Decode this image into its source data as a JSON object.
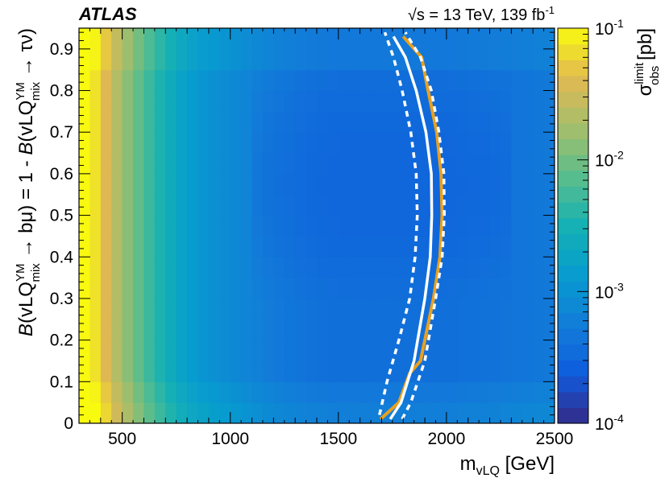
{
  "chart_data": {
    "type": "heatmap",
    "title": "ATLAS",
    "energy_label": "√s = 13 TeV, 139 fb",
    "energy_label_exponent": "-1",
    "xlabel": {
      "main": "m",
      "sub": "vLQ",
      "unit": " [GeV]"
    },
    "ylabel": {
      "part1_italic": "B",
      "part1": "(vLQ",
      "part1_sup": "YM",
      "part1_sub": "mix",
      "part1_tail": " → bμ) = 1 - ",
      "part2_italic": "B",
      "part2": "(vLQ",
      "part2_sup": "YM",
      "part2_sub": "mix",
      "part2_tail": " → τν)"
    },
    "zlabel": {
      "main": "σ",
      "sup": "limit",
      "sub": "obs",
      "unit": " [pb]"
    },
    "xlim": [
      300,
      2500
    ],
    "ylim": [
      0,
      0.95
    ],
    "zlim": [
      0.0001,
      0.1
    ],
    "zscale": "log",
    "xticks": [
      500,
      1000,
      1500,
      2000,
      2500
    ],
    "yticks": [
      0,
      0.1,
      0.2,
      0.3,
      0.4,
      0.5,
      0.6,
      0.7,
      0.8,
      0.9
    ],
    "zticks": [
      {
        "base": "10",
        "exp": "-4"
      },
      {
        "base": "10",
        "exp": "-3"
      },
      {
        "base": "10",
        "exp": "-2"
      },
      {
        "base": "10",
        "exp": "-1"
      }
    ],
    "x_bins": [
      300,
      350,
      400,
      450,
      500,
      550,
      600,
      650,
      700,
      750,
      800,
      850,
      900,
      950,
      1000,
      1050,
      1100,
      1150,
      1200,
      1250,
      1300,
      1350,
      1400,
      1450,
      1500,
      1550,
      1600,
      1650,
      1700,
      1750,
      1800,
      1850,
      1900,
      1950,
      2000,
      2050,
      2100,
      2150,
      2200,
      2250,
      2300,
      2350,
      2400,
      2450,
      2500
    ],
    "y_bins": [
      0,
      0.05,
      0.1,
      0.15,
      0.2,
      0.25,
      0.3,
      0.35,
      0.4,
      0.45,
      0.5,
      0.55,
      0.6,
      0.65,
      0.7,
      0.75,
      0.8,
      0.85,
      0.9,
      0.95
    ],
    "limit_profile": [
      {
        "x": 300,
        "log10_sigma": -1.0
      },
      {
        "x": 350,
        "log10_sigma": -1.05
      },
      {
        "x": 400,
        "log10_sigma": -1.25
      },
      {
        "x": 450,
        "log10_sigma": -1.55
      },
      {
        "x": 500,
        "log10_sigma": -1.8
      },
      {
        "x": 550,
        "log10_sigma": -2.0
      },
      {
        "x": 600,
        "log10_sigma": -2.2
      },
      {
        "x": 650,
        "log10_sigma": -2.4
      },
      {
        "x": 700,
        "log10_sigma": -2.55
      },
      {
        "x": 750,
        "log10_sigma": -2.7
      },
      {
        "x": 800,
        "log10_sigma": -2.85
      },
      {
        "x": 900,
        "log10_sigma": -3.0
      },
      {
        "x": 1000,
        "log10_sigma": -3.1
      },
      {
        "x": 1100,
        "log10_sigma": -3.2
      },
      {
        "x": 1200,
        "log10_sigma": -3.3
      },
      {
        "x": 1300,
        "log10_sigma": -3.35
      },
      {
        "x": 1400,
        "log10_sigma": -3.4
      },
      {
        "x": 1500,
        "log10_sigma": -3.42
      },
      {
        "x": 1600,
        "log10_sigma": -3.42
      },
      {
        "x": 1700,
        "log10_sigma": -3.42
      },
      {
        "x": 1800,
        "log10_sigma": -3.42
      },
      {
        "x": 1900,
        "log10_sigma": -3.42
      },
      {
        "x": 2000,
        "log10_sigma": -3.42
      },
      {
        "x": 2100,
        "log10_sigma": -3.4
      },
      {
        "x": 2200,
        "log10_sigma": -3.38
      },
      {
        "x": 2300,
        "log10_sigma": -3.35
      },
      {
        "x": 2400,
        "log10_sigma": -3.33
      },
      {
        "x": 2500,
        "log10_sigma": -3.3
      }
    ],
    "lines": [
      {
        "style": "orange-solid",
        "color": "#e8a020",
        "points": [
          [
            1695,
            0.01
          ],
          [
            1780,
            0.05
          ],
          [
            1830,
            0.12
          ],
          [
            1880,
            0.15
          ],
          [
            1940,
            0.3
          ],
          [
            1970,
            0.4
          ],
          [
            1980,
            0.5
          ],
          [
            1975,
            0.6
          ],
          [
            1955,
            0.7
          ],
          [
            1915,
            0.8
          ],
          [
            1885,
            0.88
          ],
          [
            1800,
            0.93
          ]
        ]
      },
      {
        "style": "white-solid",
        "color": "#ffffff",
        "points": [
          [
            1740,
            0.01
          ],
          [
            1790,
            0.05
          ],
          [
            1850,
            0.15
          ],
          [
            1900,
            0.3
          ],
          [
            1925,
            0.4
          ],
          [
            1932,
            0.5
          ],
          [
            1930,
            0.6
          ],
          [
            1905,
            0.7
          ],
          [
            1860,
            0.8
          ],
          [
            1810,
            0.88
          ],
          [
            1755,
            0.93
          ]
        ]
      },
      {
        "style": "white-dashed",
        "color": "#ffffff",
        "points": [
          [
            1690,
            0.02
          ],
          [
            1725,
            0.1
          ],
          [
            1780,
            0.2
          ],
          [
            1830,
            0.3
          ],
          [
            1855,
            0.4
          ],
          [
            1865,
            0.5
          ],
          [
            1860,
            0.6
          ],
          [
            1835,
            0.7
          ],
          [
            1795,
            0.8
          ],
          [
            1755,
            0.88
          ],
          [
            1715,
            0.94
          ]
        ]
      },
      {
        "style": "white-dashed",
        "color": "#ffffff",
        "points": [
          [
            1795,
            0.01
          ],
          [
            1835,
            0.05
          ],
          [
            1900,
            0.15
          ],
          [
            1950,
            0.3
          ],
          [
            1980,
            0.4
          ],
          [
            1990,
            0.5
          ],
          [
            1988,
            0.6
          ],
          [
            1965,
            0.7
          ],
          [
            1930,
            0.8
          ],
          [
            1880,
            0.88
          ],
          [
            1810,
            0.94
          ]
        ]
      }
    ]
  }
}
